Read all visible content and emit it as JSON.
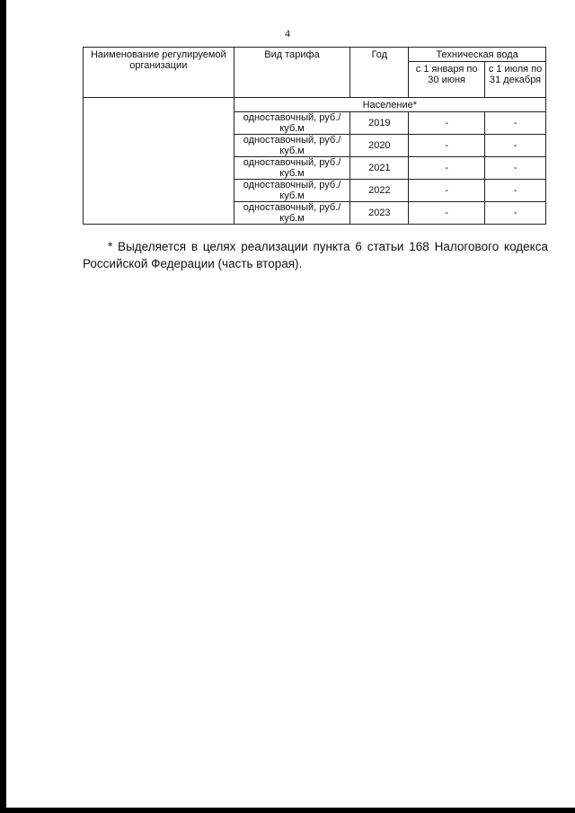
{
  "page_number": "4",
  "table": {
    "headers": {
      "org": "Наименование регулируемой организации",
      "tariff": "Вид тарифа",
      "year": "Год",
      "water": "Техническая вода",
      "period1": "с 1 января по 30 июня",
      "period2": "с 1 июля по 31 декабря"
    },
    "group": "Население*",
    "rows": [
      {
        "tariff": "одноставочный, руб./куб.м",
        "year": "2019",
        "v1": "-",
        "v2": "-"
      },
      {
        "tariff": "одноставочный, руб./куб.м",
        "year": "2020",
        "v1": "-",
        "v2": "-"
      },
      {
        "tariff": "одноставочный, руб./куб.м",
        "year": "2021",
        "v1": "-",
        "v2": "-"
      },
      {
        "tariff": "одноставочный, руб./куб.м",
        "year": "2022",
        "v1": "-",
        "v2": "-"
      },
      {
        "tariff": "одноставочный, руб./куб.м",
        "year": "2023",
        "v1": "-",
        "v2": "-"
      }
    ]
  },
  "footnote": "* Выделяется в целях реализации пункта 6 статьи 168 Налогового кодекса Российской Федерации (часть вторая)."
}
